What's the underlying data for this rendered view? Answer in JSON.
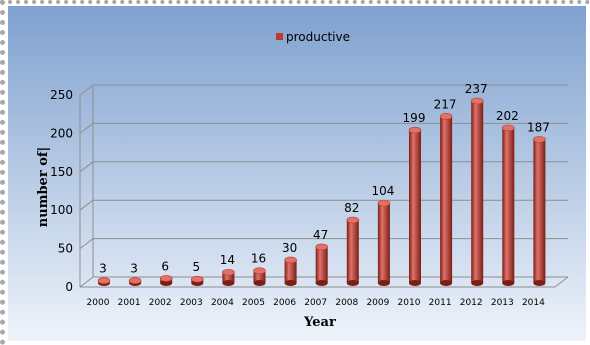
{
  "chart_data": {
    "type": "bar",
    "categories": [
      "2000",
      "2001",
      "2002",
      "2003",
      "2004",
      "2005",
      "2006",
      "2007",
      "2008",
      "2009",
      "2010",
      "2011",
      "2012",
      "2013",
      "2014"
    ],
    "series": [
      {
        "name": "productive",
        "values": [
          3,
          3,
          6,
          5,
          14,
          16,
          30,
          47,
          82,
          104,
          199,
          217,
          237,
          202,
          187
        ]
      }
    ],
    "data_labels": [
      "3",
      "3",
      "6",
      "5",
      "14",
      "16",
      "30",
      "47",
      "82",
      "104",
      "199",
      "217",
      "237",
      "202",
      "187"
    ],
    "title": "",
    "xlabel": "Year",
    "ylabel": "number of|",
    "ylim": [
      0,
      250
    ],
    "yticks": [
      0,
      50,
      100,
      150,
      200,
      250
    ],
    "grid": true,
    "legend_position": "top",
    "style": "3d-cylinder",
    "colors": {
      "bar": "#c0392b",
      "bar_dark": "#7a1e16",
      "bar_light": "#e0726a",
      "background_top": "#7fa1cf",
      "background_bottom": "#eef3fa",
      "gridline": "#8e8e8e",
      "legend_marker": "#c0392b"
    }
  }
}
